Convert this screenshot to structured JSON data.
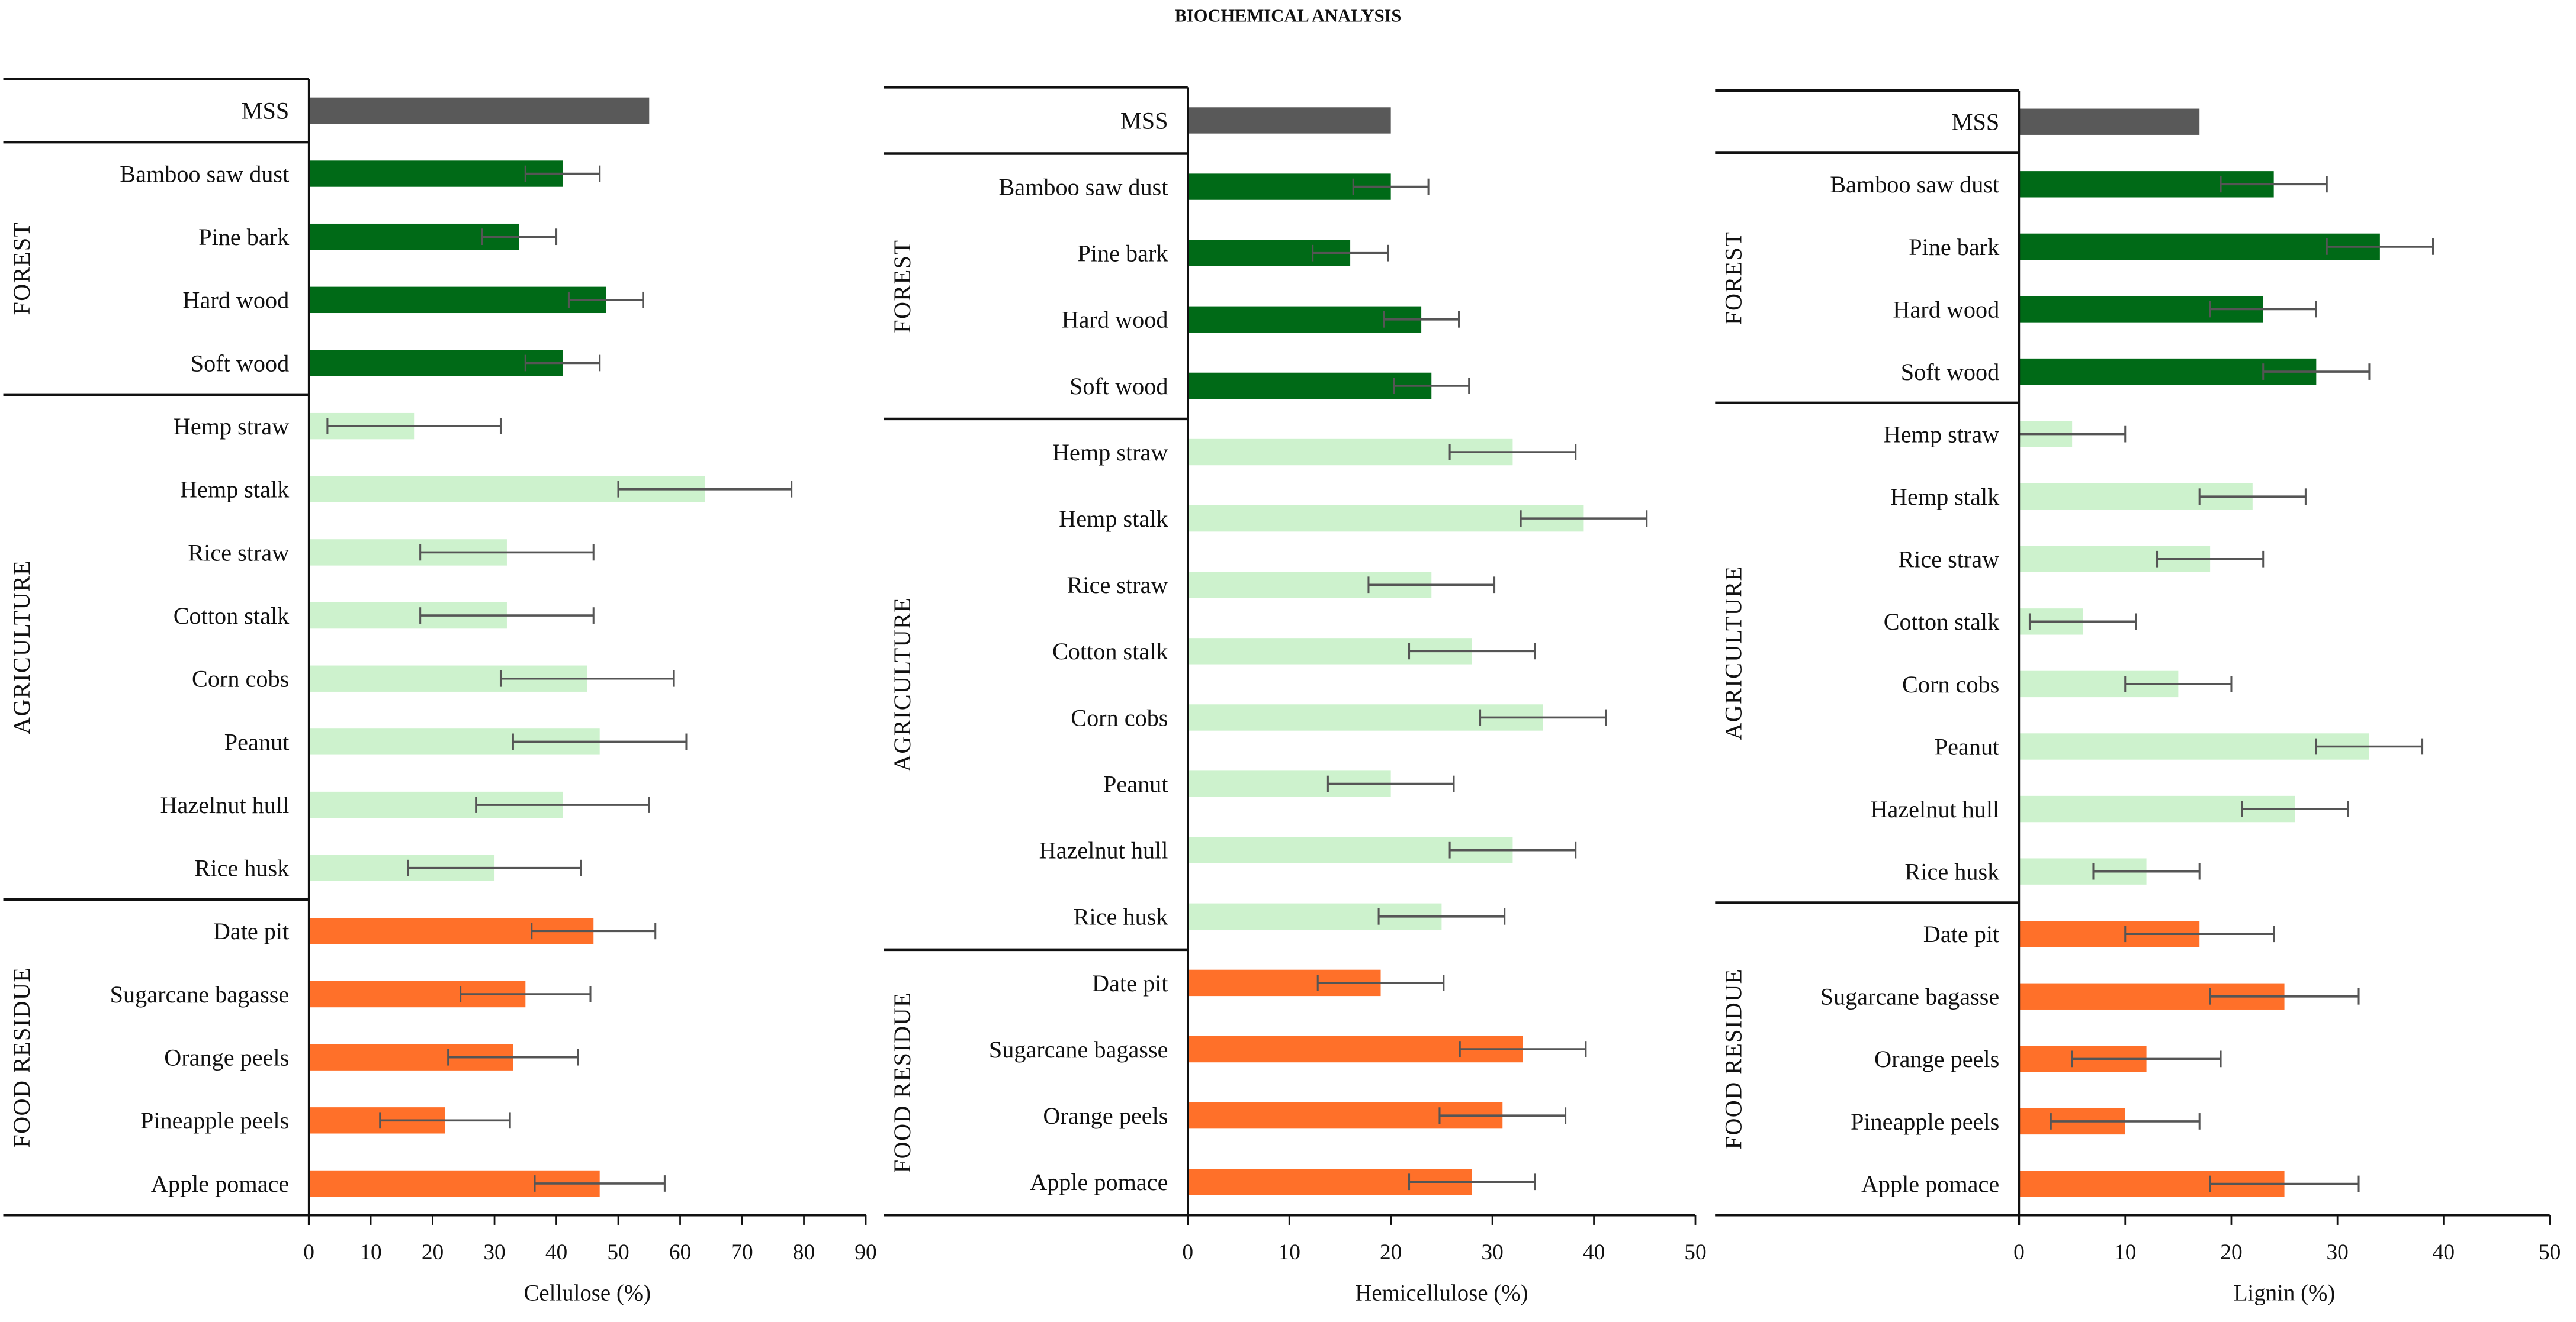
{
  "title": "BIOCHEMICAL ANALYSIS",
  "colors": {
    "mss": "#595959",
    "forest": "#006a17",
    "agriculture": "#cdf2cd",
    "food": "#ff7029",
    "error": "#555555"
  },
  "chart_data": [
    {
      "type": "bar",
      "orientation": "horizontal",
      "xlabel": "Cellulose (%)",
      "xlim": [
        0,
        90
      ],
      "ticks": [
        "0",
        "10",
        "20",
        "30",
        "40",
        "50",
        "60",
        "70",
        "80",
        "90"
      ],
      "tick_values": [
        0,
        10,
        20,
        30,
        40,
        50,
        60,
        70,
        80,
        90
      ],
      "groups": [
        {
          "name": "",
          "color_key": "mss",
          "items": [
            {
              "label": "MSS",
              "value": 55
            }
          ]
        },
        {
          "name": "FOREST",
          "color_key": "forest",
          "items": [
            {
              "label": "Bamboo saw dust",
              "value": 41,
              "error": 6
            },
            {
              "label": "Pine bark",
              "value": 34,
              "error": 6
            },
            {
              "label": "Hard wood",
              "value": 48,
              "error": 6
            },
            {
              "label": "Soft wood",
              "value": 41,
              "error": 6
            }
          ]
        },
        {
          "name": "AGRICULTURE",
          "color_key": "agriculture",
          "items": [
            {
              "label": "Hemp straw",
              "value": 17,
              "error": 14
            },
            {
              "label": "Hemp stalk",
              "value": 64,
              "error": 14
            },
            {
              "label": "Rice straw",
              "value": 32,
              "error": 14
            },
            {
              "label": "Cotton stalk",
              "value": 32,
              "error": 14
            },
            {
              "label": "Corn cobs",
              "value": 45,
              "error": 14
            },
            {
              "label": "Peanut",
              "value": 47,
              "error": 14
            },
            {
              "label": "Hazelnut hull",
              "value": 41,
              "error": 14
            },
            {
              "label": "Rice husk",
              "value": 30,
              "error": 14
            }
          ]
        },
        {
          "name": "FOOD RESIDUE",
          "color_key": "food",
          "items": [
            {
              "label": "Date pit",
              "value": 46,
              "error": 10
            },
            {
              "label": "Sugarcane bagasse",
              "value": 35,
              "error": 10.5
            },
            {
              "label": "Orange peels",
              "value": 33,
              "error": 10.5
            },
            {
              "label": "Pineapple peels",
              "value": 22,
              "error": 10.5
            },
            {
              "label": "Apple pomace",
              "value": 47,
              "error": 10.5
            }
          ]
        }
      ]
    },
    {
      "type": "bar",
      "orientation": "horizontal",
      "xlabel": "Hemicellulose (%)",
      "xlim": [
        0,
        50
      ],
      "ticks": [
        "0",
        "10",
        "20",
        "30",
        "40",
        "50"
      ],
      "tick_values": [
        0,
        10,
        20,
        30,
        40,
        50
      ],
      "groups": [
        {
          "name": "",
          "color_key": "mss",
          "items": [
            {
              "label": "MSS",
              "value": 20
            }
          ]
        },
        {
          "name": "FOREST",
          "color_key": "forest",
          "items": [
            {
              "label": "Bamboo saw dust",
              "value": 20,
              "error": 3.7
            },
            {
              "label": "Pine bark",
              "value": 16,
              "error": 3.7
            },
            {
              "label": "Hard wood",
              "value": 23,
              "error": 3.7
            },
            {
              "label": "Soft wood",
              "value": 24,
              "error": 3.7
            }
          ]
        },
        {
          "name": "AGRICULTURE",
          "color_key": "agriculture",
          "items": [
            {
              "label": "Hemp straw",
              "value": 32,
              "error": 6.2
            },
            {
              "label": "Hemp stalk",
              "value": 39,
              "error": 6.2
            },
            {
              "label": "Rice straw",
              "value": 24,
              "error": 6.2
            },
            {
              "label": "Cotton stalk",
              "value": 28,
              "error": 6.2
            },
            {
              "label": "Corn cobs",
              "value": 35,
              "error": 6.2
            },
            {
              "label": "Peanut",
              "value": 20,
              "error": 6.2
            },
            {
              "label": "Hazelnut hull",
              "value": 32,
              "error": 6.2
            },
            {
              "label": "Rice husk",
              "value": 25,
              "error": 6.2
            }
          ]
        },
        {
          "name": "FOOD RESIDUE",
          "color_key": "food",
          "items": [
            {
              "label": "Date pit",
              "value": 19,
              "error": 6.2
            },
            {
              "label": "Sugarcane bagasse",
              "value": 33,
              "error": 6.2
            },
            {
              "label": "Orange peels",
              "value": 31,
              "error": 6.2
            },
            {
              "label": "Apple pomace",
              "value": 28,
              "error": 6.2
            }
          ]
        }
      ]
    },
    {
      "type": "bar",
      "orientation": "horizontal",
      "xlabel": "Lignin (%)",
      "xlim": [
        0,
        50
      ],
      "ticks": [
        "0",
        "10",
        "20",
        "30",
        "40",
        "50"
      ],
      "tick_values": [
        0,
        10,
        20,
        30,
        40,
        50
      ],
      "groups": [
        {
          "name": "",
          "color_key": "mss",
          "items": [
            {
              "label": "MSS",
              "value": 17
            }
          ]
        },
        {
          "name": "FOREST",
          "color_key": "forest",
          "items": [
            {
              "label": "Bamboo saw dust",
              "value": 24,
              "error": 5
            },
            {
              "label": "Pine bark",
              "value": 34,
              "error": 5
            },
            {
              "label": "Hard wood",
              "value": 23,
              "error": 5
            },
            {
              "label": "Soft wood",
              "value": 28,
              "error": 5
            }
          ]
        },
        {
          "name": "AGRICULTURE",
          "color_key": "agriculture",
          "items": [
            {
              "label": "Hemp straw",
              "value": 5,
              "error": 5
            },
            {
              "label": "Hemp stalk",
              "value": 22,
              "error": 5
            },
            {
              "label": "Rice straw",
              "value": 18,
              "error": 5
            },
            {
              "label": "Cotton stalk",
              "value": 6,
              "error": 5
            },
            {
              "label": "Corn cobs",
              "value": 15,
              "error": 5
            },
            {
              "label": "Peanut",
              "value": 33,
              "error": 5
            },
            {
              "label": "Hazelnut hull",
              "value": 26,
              "error": 5
            },
            {
              "label": "Rice husk",
              "value": 12,
              "error": 5
            }
          ]
        },
        {
          "name": "FOOD RESIDUE",
          "color_key": "food",
          "items": [
            {
              "label": "Date pit",
              "value": 17,
              "error": 7
            },
            {
              "label": "Sugarcane bagasse",
              "value": 25,
              "error": 7
            },
            {
              "label": "Orange peels",
              "value": 12,
              "error": 7
            },
            {
              "label": "Pineapple peels",
              "value": 10,
              "error": 7
            },
            {
              "label": "Apple pomace",
              "value": 25,
              "error": 7
            }
          ]
        }
      ]
    }
  ]
}
